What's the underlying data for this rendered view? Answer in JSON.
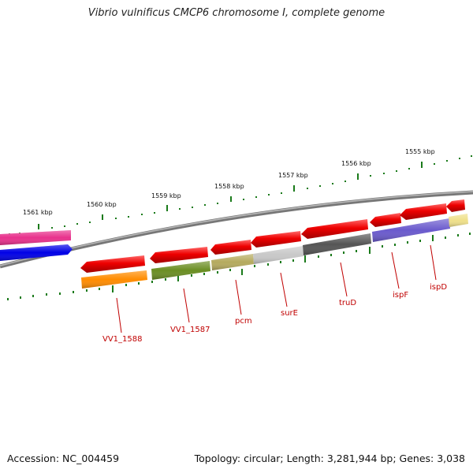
{
  "title": "Vibrio vulnificus CMCP6 chromosome I, complete genome",
  "footer": {
    "accession": "Accession: NC_004459",
    "stats": "Topology: circular; Length: 3,281,944 bp; Genes: 3,038"
  },
  "axis_labels": [
    "1555 kbp",
    "1556 kbp",
    "1557 kbp",
    "1558 kbp",
    "1559 kbp",
    "1560 kbp",
    "1561 kbp"
  ],
  "gene_labels": [
    "ispD",
    "ispF",
    "truD",
    "surE",
    "pcm",
    "VV1_1587",
    "VV1_1588"
  ],
  "colors": {
    "gene": "#e80000",
    "backbone": "#888888",
    "tick": "#1a7a1a",
    "label": "#c00000",
    "magenta_feature": "#e8318c",
    "blue_feature": "#0000e6",
    "ispD_feature": "#efe08a",
    "ispF_feature": "#6a5acd",
    "truD_feature": "#555555",
    "surE_feature": "#c8c8c8",
    "pcm_feature": "#b5aa5e",
    "vv1587_feature": "#6b8e23",
    "vv1588_feature": "#ff8c00"
  }
}
